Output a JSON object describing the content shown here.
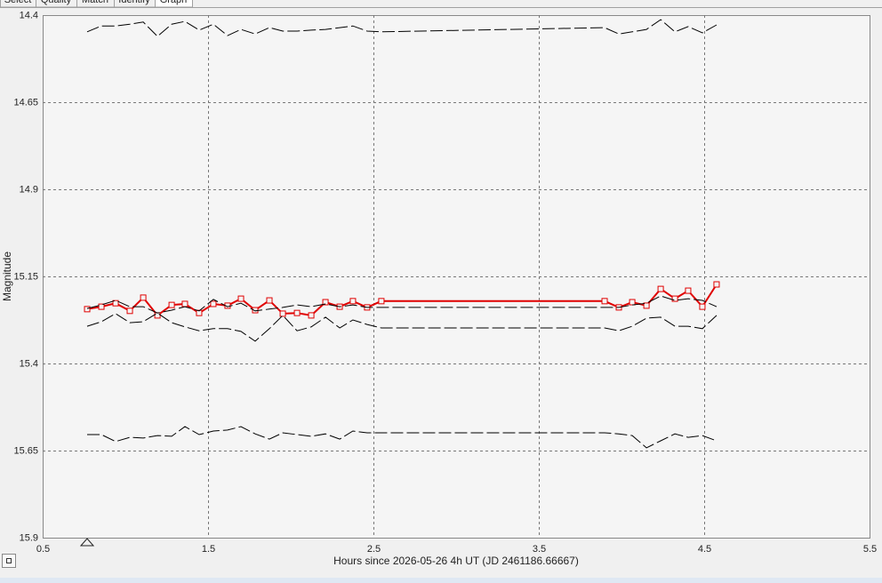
{
  "tabs": [
    "Select",
    "Quality",
    "Match",
    "Identify",
    "Graph"
  ],
  "chart_data": {
    "type": "line",
    "xlabel": "Hours since 2026-05-26 4h UT (JD 2461186.66667)",
    "ylabel": "Magnitude",
    "xlim": [
      0.5,
      5.5
    ],
    "xticks": [
      0.5,
      1.5,
      2.5,
      3.5,
      4.5,
      5.5
    ],
    "ylim": [
      14.4,
      15.9
    ],
    "y_inverted": true,
    "yticks": [
      14.4,
      14.65,
      14.9,
      15.15,
      15.4,
      15.65,
      15.9
    ],
    "grid": true,
    "x": [
      0.769,
      0.855,
      0.941,
      1.027,
      1.108,
      1.194,
      1.28,
      1.36,
      1.446,
      1.532,
      1.618,
      1.699,
      1.785,
      1.871,
      1.952,
      2.038,
      2.124,
      2.21,
      2.296,
      2.376,
      2.462,
      2.548,
      3.898,
      3.984,
      4.065,
      4.151,
      4.237,
      4.323,
      4.403,
      4.489,
      4.575
    ],
    "series": [
      {
        "color": "#e00000",
        "marker": "square",
        "dashed": false,
        "values": [
          15.244,
          15.237,
          15.227,
          15.249,
          15.211,
          15.262,
          15.232,
          15.229,
          15.255,
          15.229,
          15.234,
          15.214,
          15.247,
          15.219,
          15.257,
          15.255,
          15.262,
          15.224,
          15.237,
          15.221,
          15.239,
          15.221,
          15.221,
          15.239,
          15.224,
          15.234,
          15.186,
          15.214,
          15.191,
          15.237,
          15.173
        ]
      },
      {
        "color": "#000000",
        "dashed": true,
        "values": [
          14.448,
          14.431,
          14.431,
          14.426,
          14.42,
          14.461,
          14.426,
          14.418,
          14.443,
          14.426,
          14.459,
          14.441,
          14.454,
          14.436,
          14.446,
          14.446,
          14.443,
          14.441,
          14.436,
          14.431,
          14.446,
          14.448,
          14.436,
          14.454,
          14.448,
          14.441,
          14.413,
          14.448,
          14.433,
          14.451,
          14.428
        ]
      },
      {
        "color": "#000000",
        "dashed": true,
        "values": [
          15.242,
          15.232,
          15.219,
          15.237,
          15.237,
          15.255,
          15.247,
          15.237,
          15.249,
          15.216,
          15.237,
          15.227,
          15.249,
          15.244,
          15.239,
          15.232,
          15.237,
          15.229,
          15.237,
          15.232,
          15.239,
          15.239,
          15.239,
          15.239,
          15.232,
          15.227,
          15.206,
          15.219,
          15.214,
          15.219,
          15.237
        ]
      },
      {
        "color": "#000000",
        "dashed": true,
        "values": [
          15.293,
          15.28,
          15.257,
          15.283,
          15.28,
          15.255,
          15.283,
          15.295,
          15.306,
          15.3,
          15.3,
          15.308,
          15.336,
          15.3,
          15.262,
          15.306,
          15.295,
          15.267,
          15.298,
          15.275,
          15.288,
          15.298,
          15.298,
          15.306,
          15.293,
          15.27,
          15.267,
          15.293,
          15.293,
          15.3,
          15.262
        ]
      },
      {
        "color": "#000000",
        "dashed": true,
        "values": [
          15.604,
          15.604,
          15.624,
          15.612,
          15.614,
          15.607,
          15.609,
          15.581,
          15.604,
          15.594,
          15.591,
          15.581,
          15.602,
          15.617,
          15.599,
          15.604,
          15.609,
          15.602,
          15.617,
          15.594,
          15.599,
          15.599,
          15.599,
          15.602,
          15.607,
          15.642,
          15.622,
          15.602,
          15.612,
          15.607,
          15.622
        ]
      }
    ]
  }
}
